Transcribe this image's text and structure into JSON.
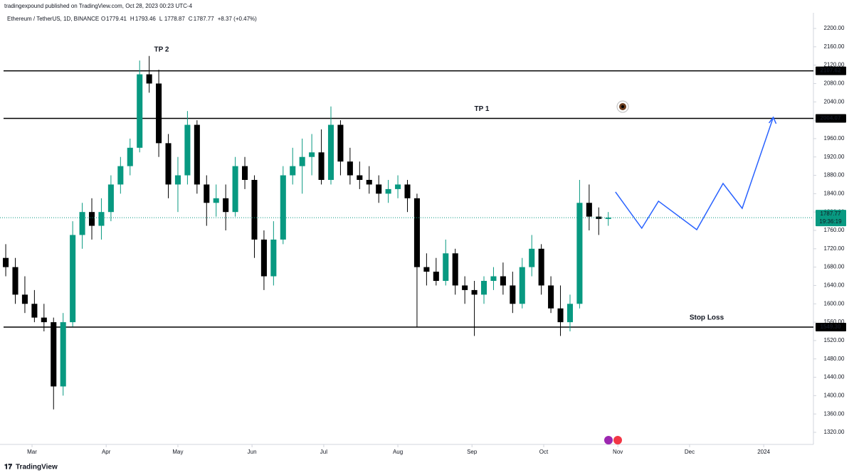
{
  "header": {
    "publisher": "tradingexpound published on TradingView.com, Oct 28, 2023 00:23 UTC-4"
  },
  "footer": {
    "brand": "TradingView"
  },
  "chart_data": {
    "type": "candlestick",
    "title": "Ethereum / TetherUS, 1D, BINANCE",
    "ohlc": [
      {
        "key": "O",
        "value": 1779.41
      },
      {
        "key": "H",
        "value": 1793.46
      },
      {
        "key": "L",
        "value": 1778.87
      },
      {
        "key": "C",
        "value": 1787.77
      }
    ],
    "change": "+8.37 (+0.47%)",
    "up_color": "#089981",
    "down_color": "#000000",
    "x": [
      0,
      4,
      8,
      12,
      16,
      20,
      24,
      28,
      32,
      36,
      40,
      44,
      48,
      52,
      56,
      60,
      64,
      68,
      72,
      76,
      80,
      84,
      88,
      92,
      96,
      100,
      104,
      108,
      112,
      116,
      120,
      124,
      128,
      132,
      136,
      140,
      144,
      148,
      152,
      156,
      160,
      164,
      168,
      172,
      176,
      180,
      184,
      188,
      192,
      196,
      200,
      204,
      208,
      212,
      216,
      220,
      224,
      228,
      232,
      236,
      240,
      244,
      248,
      252
    ],
    "open": [
      1700,
      1680,
      1620,
      1600,
      1570,
      1560,
      1420,
      1560,
      1750,
      1800,
      1770,
      1800,
      1860,
      1900,
      1940,
      2100,
      2080,
      1950,
      1860,
      1880,
      1990,
      1860,
      1820,
      1830,
      1800,
      1900,
      1870,
      1740,
      1660,
      1740,
      1880,
      1900,
      1920,
      1930,
      1870,
      1990,
      1910,
      1880,
      1870,
      1860,
      1840,
      1850,
      1860,
      1830,
      1680,
      1670,
      1650,
      1710,
      1640,
      1630,
      1620,
      1650,
      1660,
      1640,
      1600,
      1680,
      1720,
      1640,
      1590,
      1560,
      1600,
      1820,
      1790,
      1785
    ],
    "high": [
      1730,
      1700,
      1660,
      1630,
      1600,
      1570,
      1580,
      1780,
      1820,
      1830,
      1830,
      1880,
      1920,
      1960,
      2130,
      2140,
      2110,
      1970,
      1920,
      2020,
      2000,
      1880,
      1860,
      1860,
      1920,
      1920,
      1880,
      1760,
      1780,
      1900,
      1940,
      1960,
      1970,
      1980,
      2030,
      2000,
      1940,
      1910,
      1900,
      1880,
      1870,
      1880,
      1870,
      1840,
      1710,
      1700,
      1740,
      1720,
      1660,
      1650,
      1660,
      1680,
      1690,
      1670,
      1700,
      1750,
      1730,
      1660,
      1640,
      1620,
      1870,
      1860,
      1810,
      1800
    ],
    "low": [
      1660,
      1600,
      1580,
      1560,
      1540,
      1370,
      1400,
      1550,
      1720,
      1740,
      1740,
      1780,
      1840,
      1880,
      1930,
      2060,
      1920,
      1830,
      1800,
      1860,
      1840,
      1770,
      1790,
      1760,
      1790,
      1850,
      1700,
      1630,
      1640,
      1730,
      1860,
      1840,
      1880,
      1860,
      1860,
      1880,
      1860,
      1850,
      1840,
      1820,
      1820,
      1830,
      1800,
      1550,
      1640,
      1640,
      1640,
      1620,
      1600,
      1530,
      1600,
      1630,
      1620,
      1580,
      1590,
      1660,
      1620,
      1580,
      1530,
      1540,
      1590,
      1760,
      1750,
      1770
    ],
    "close": [
      1680,
      1620,
      1600,
      1570,
      1560,
      1420,
      1560,
      1750,
      1800,
      1770,
      1800,
      1860,
      1900,
      1940,
      2100,
      2080,
      1950,
      1860,
      1880,
      1990,
      1860,
      1820,
      1830,
      1800,
      1900,
      1870,
      1740,
      1660,
      1740,
      1880,
      1900,
      1920,
      1930,
      1870,
      1990,
      1910,
      1880,
      1870,
      1860,
      1840,
      1850,
      1860,
      1830,
      1680,
      1670,
      1650,
      1710,
      1640,
      1630,
      1620,
      1650,
      1660,
      1640,
      1600,
      1680,
      1720,
      1640,
      1590,
      1560,
      1600,
      1820,
      1790,
      1785,
      1787.77
    ],
    "projection": {
      "color": "#2962ff",
      "x": [
        255,
        266,
        273,
        289,
        300,
        308,
        321
      ],
      "values": [
        1843.7,
        1764.7,
        1823.6,
        1761.6,
        1862.3,
        1808,
        2006.4
      ]
    },
    "levels": [
      {
        "name": "TP 2",
        "value": 2107.62,
        "label": "2107.62"
      },
      {
        "name": "TP 1",
        "value": 2004.07,
        "label": "2004.07"
      },
      {
        "name": "Stop Loss",
        "value": 1549.3,
        "label": "1549.30"
      }
    ],
    "last_price": {
      "value": 1787.77,
      "countdown": "19:36:19",
      "color": "#089981"
    },
    "xlim": [
      -2.4,
      337.8
    ],
    "xticks": [
      {
        "value": 11,
        "label": "Mar"
      },
      {
        "value": 42,
        "label": "Apr"
      },
      {
        "value": 72,
        "label": "May"
      },
      {
        "value": 103,
        "label": "Jun"
      },
      {
        "value": 133,
        "label": "Jul"
      },
      {
        "value": 164,
        "label": "Aug"
      },
      {
        "value": 195,
        "label": "Sep"
      },
      {
        "value": 225,
        "label": "Oct"
      },
      {
        "value": 256,
        "label": "Nov"
      },
      {
        "value": 286,
        "label": "Dec"
      },
      {
        "value": 317,
        "label": "2024"
      }
    ],
    "ylim": [
      1320,
      2200
    ],
    "yticks": [
      {
        "value": 2200,
        "label": "2200.00"
      },
      {
        "value": 2160,
        "label": "2160.00"
      },
      {
        "value": 2120,
        "label": "2120.00"
      },
      {
        "value": 2080,
        "label": "2080.00"
      },
      {
        "value": 2040,
        "label": "2040.00"
      },
      {
        "value": 2000,
        "label": "2000.00"
      },
      {
        "value": 1960,
        "label": "1960.00"
      },
      {
        "value": 1920,
        "label": "1920.00"
      },
      {
        "value": 1880,
        "label": "1880.00"
      },
      {
        "value": 1840,
        "label": "1840.00"
      },
      {
        "value": 1800,
        "label": "1800.00"
      },
      {
        "value": 1760,
        "label": "1760.00"
      },
      {
        "value": 1720,
        "label": "1720.00"
      },
      {
        "value": 1680,
        "label": "1680.00"
      },
      {
        "value": 1640,
        "label": "1640.00"
      },
      {
        "value": 1600,
        "label": "1600.00"
      },
      {
        "value": 1560,
        "label": "1560.00"
      },
      {
        "value": 1520,
        "label": "1520.00"
      },
      {
        "value": 1480,
        "label": "1480.00"
      },
      {
        "value": 1440,
        "label": "1440.00"
      },
      {
        "value": 1400,
        "label": "1400.00"
      },
      {
        "value": 1360,
        "label": "1360.00"
      },
      {
        "value": 1320,
        "label": "1320.00"
      }
    ],
    "grid": false
  }
}
